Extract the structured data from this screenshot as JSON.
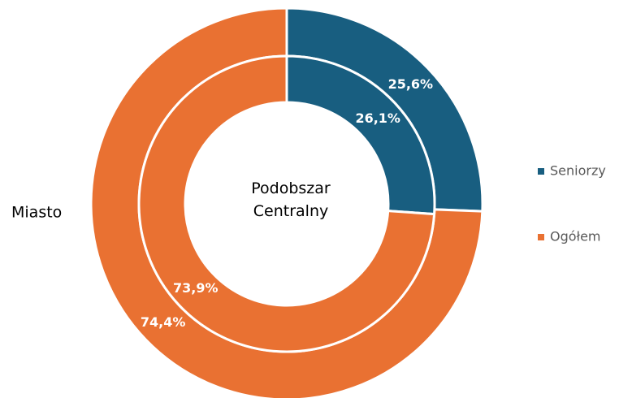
{
  "chart_data": {
    "type": "donut",
    "categories": [
      "Seniorzy",
      "Ogółem"
    ],
    "colors": [
      "#185e80",
      "#e97132"
    ],
    "rings": [
      {
        "name": "Miasto",
        "values": [
          25.6,
          74.4
        ],
        "value_labels": [
          "25,6%",
          "74,4%"
        ]
      },
      {
        "name": "Podobszar Centralny",
        "values": [
          26.1,
          73.9
        ],
        "value_labels": [
          "26,1%",
          "73,9%"
        ]
      }
    ],
    "legend": "right"
  }
}
